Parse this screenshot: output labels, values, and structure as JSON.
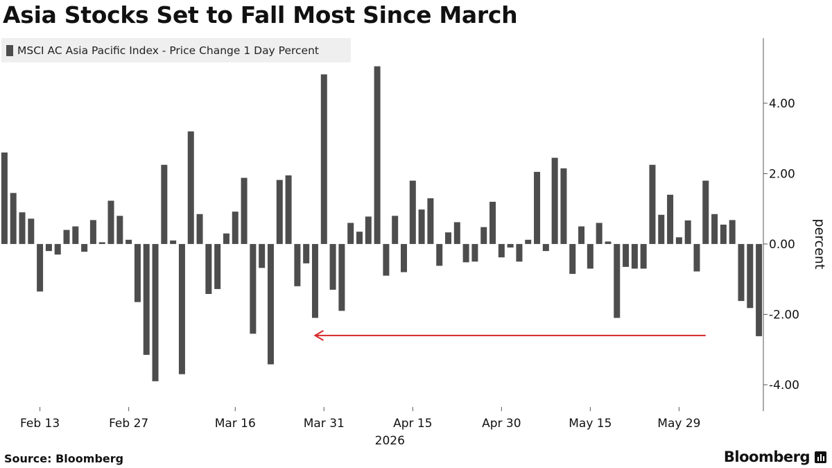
{
  "title": "Asia Stocks Set to Fall Most Since March",
  "source": "Source: Bloomberg",
  "brand": "Bloomberg",
  "colors": {
    "bar": "#4d4d4d",
    "arrow": "#d62728",
    "axis": "#555555"
  },
  "chart_data": {
    "type": "bar",
    "title": "Asia Stocks Set to Fall Most Since March",
    "series": [
      {
        "name": "MSCI AC Asia Pacific Index - Price Change 1 Day Percent",
        "values": [
          2.6,
          1.45,
          0.9,
          0.72,
          -1.35,
          -0.2,
          -0.3,
          0.4,
          0.5,
          -0.22,
          0.68,
          0.05,
          1.23,
          0.8,
          0.12,
          -1.65,
          -3.15,
          -3.9,
          2.25,
          0.1,
          -3.7,
          3.2,
          0.85,
          -1.42,
          -1.28,
          0.3,
          0.92,
          1.88,
          -2.55,
          -0.68,
          -3.42,
          1.82,
          1.95,
          -1.2,
          -0.55,
          -2.1,
          4.82,
          -1.3,
          -1.9,
          0.6,
          0.35,
          0.78,
          5.05,
          -0.9,
          0.8,
          -0.8,
          1.8,
          0.98,
          1.3,
          -0.62,
          0.33,
          0.62,
          -0.52,
          -0.5,
          0.48,
          1.2,
          -0.38,
          -0.1,
          -0.5,
          0.12,
          2.05,
          -0.2,
          2.45,
          2.15,
          -0.85,
          0.5,
          -0.7,
          0.6,
          0.07,
          -2.1,
          -0.65,
          -0.7,
          -0.7,
          2.25,
          0.83,
          1.4,
          0.19,
          0.67,
          -0.78,
          1.8,
          0.85,
          0.55,
          0.68,
          -1.62,
          -1.82,
          -2.62
        ]
      }
    ],
    "x_ticks": [
      "Feb 13",
      "Feb 27",
      "Mar 16",
      "Mar 31",
      "Apr 15",
      "Apr 30",
      "May 15",
      "May 29"
    ],
    "x_year": "2026",
    "y_ticks": [
      "4.00",
      "2.00",
      "0.00",
      "-2.00",
      "-4.00"
    ],
    "ylabel": "percent",
    "ylim": [
      -4.75,
      5.85
    ],
    "annotation": {
      "type": "arrow",
      "from_bar": 79,
      "to_bar": 35,
      "at_value": -2.6
    }
  }
}
